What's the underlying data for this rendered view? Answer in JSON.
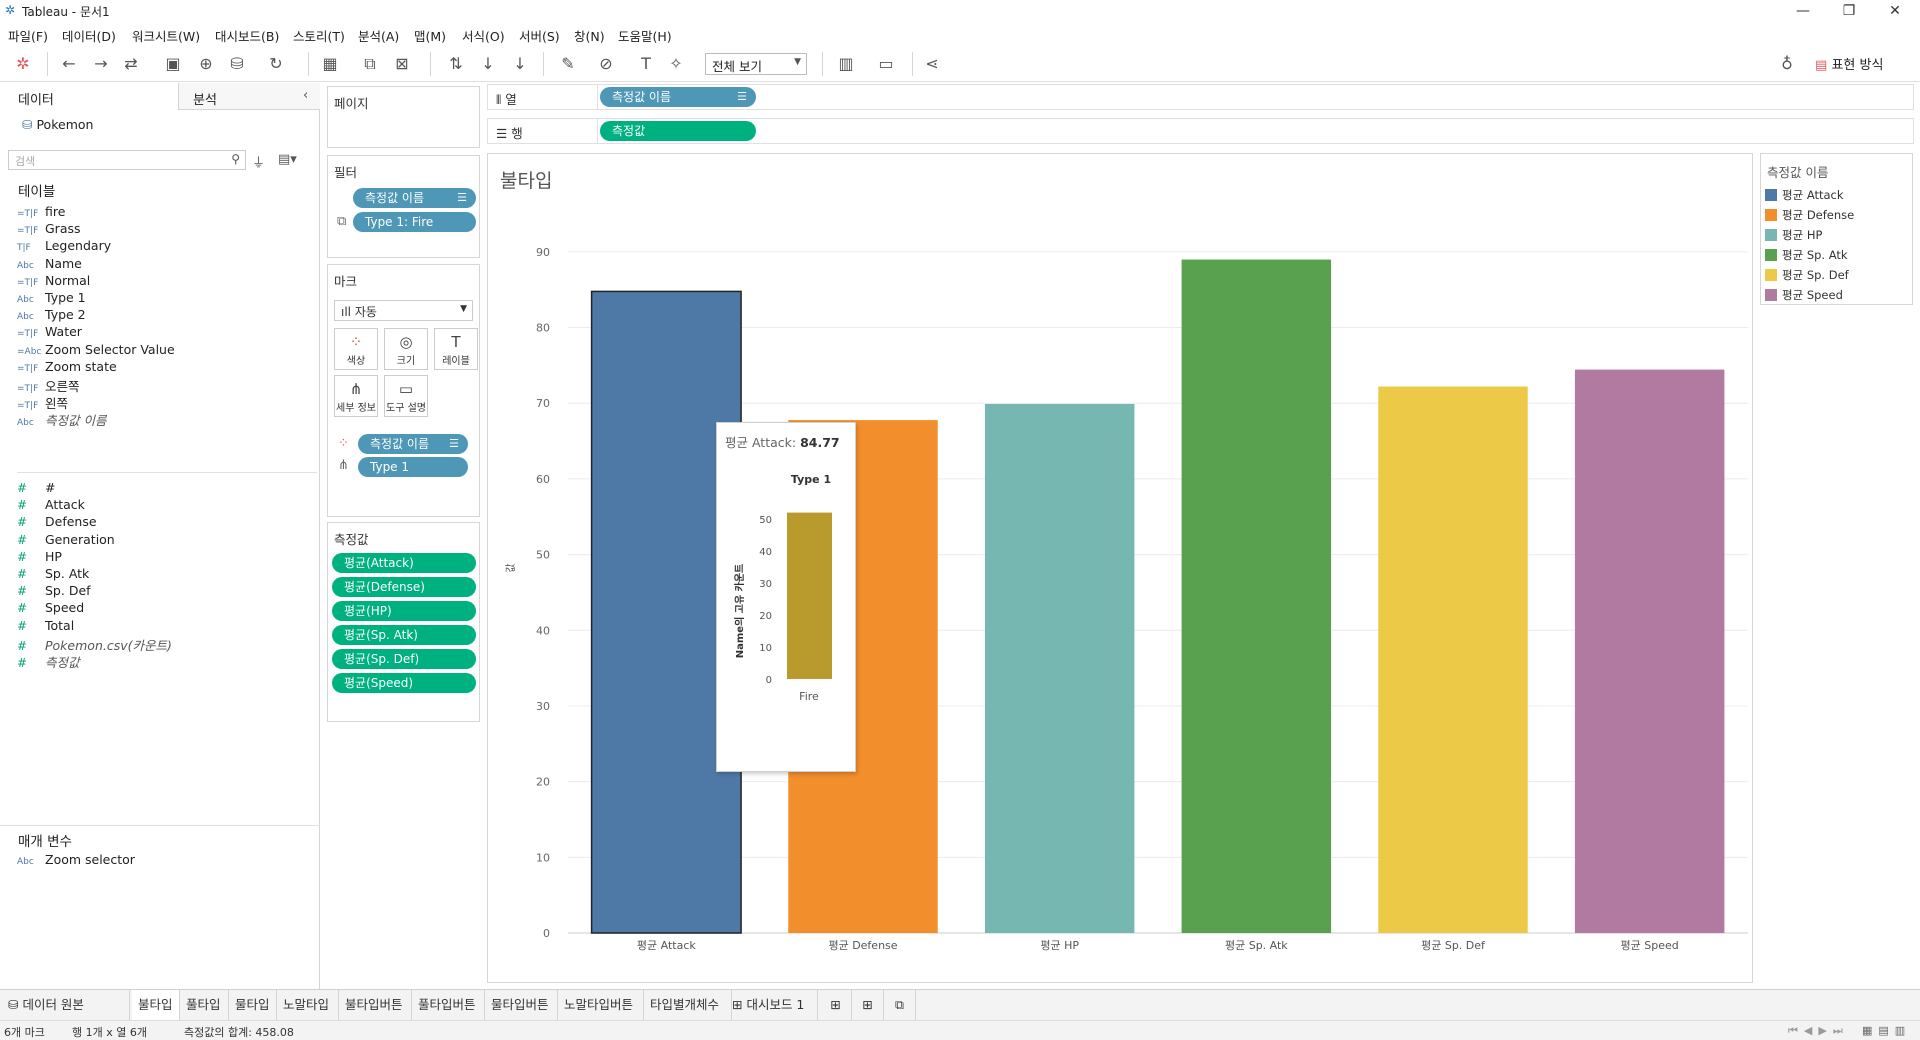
{
  "window": {
    "title": "Tableau - 문서1",
    "minimize": "—",
    "restore": "❐",
    "close": "✕"
  },
  "menu": [
    "파일(F)",
    "데이터(D)",
    "워크시트(W)",
    "대시보드(B)",
    "스토리(T)",
    "분석(A)",
    "맵(M)",
    "서식(O)",
    "서버(S)",
    "창(N)",
    "도움말(H)"
  ],
  "toolbar": {
    "view_select": "전체 보기",
    "show_me": "표현 방식"
  },
  "data_pane": {
    "tab_data": "데이터",
    "tab_analysis": "분석",
    "datasource": "Pokemon",
    "search_placeholder": "검색",
    "tables_title": "테이블",
    "dimensions": [
      {
        "icon": "=T|F",
        "label": "fire"
      },
      {
        "icon": "=T|F",
        "label": "Grass"
      },
      {
        "icon": "T|F",
        "label": "Legendary"
      },
      {
        "icon": "Abc",
        "label": "Name"
      },
      {
        "icon": "=T|F",
        "label": "Normal"
      },
      {
        "icon": "Abc",
        "label": "Type 1"
      },
      {
        "icon": "Abc",
        "label": "Type 2"
      },
      {
        "icon": "=T|F",
        "label": "Water"
      },
      {
        "icon": "=Abc",
        "label": "Zoom Selector Value"
      },
      {
        "icon": "=T|F",
        "label": "Zoom state"
      },
      {
        "icon": "=T|F",
        "label": "오른쪽"
      },
      {
        "icon": "=T|F",
        "label": "왼쪽"
      },
      {
        "icon": "Abc",
        "label": "측정값 이름"
      }
    ],
    "measures": [
      {
        "icon": "#",
        "label": "#"
      },
      {
        "icon": "#",
        "label": "Attack"
      },
      {
        "icon": "#",
        "label": "Defense"
      },
      {
        "icon": "#",
        "label": "Generation"
      },
      {
        "icon": "#",
        "label": "HP"
      },
      {
        "icon": "#",
        "label": "Sp. Atk"
      },
      {
        "icon": "#",
        "label": "Sp. Def"
      },
      {
        "icon": "#",
        "label": "Speed"
      },
      {
        "icon": "#",
        "label": "Total"
      },
      {
        "icon": "#",
        "label": "Pokemon.csv(카운트)"
      },
      {
        "icon": "#",
        "label": "측정값"
      }
    ],
    "params_title": "매개 변수",
    "params": [
      {
        "icon": "Abc",
        "label": "Zoom selector"
      }
    ]
  },
  "cards": {
    "pages_title": "페이지",
    "filters_title": "필터",
    "filters": [
      "측정값 이름",
      "Type 1: Fire"
    ],
    "marks_title": "마크",
    "mark_type": "자동",
    "mark_buttons": [
      "색상",
      "크기",
      "레이블",
      "세부 정보",
      "도구 설명"
    ],
    "mark_fields": [
      "측정값 이름",
      "Type 1"
    ],
    "measures_title": "측정값",
    "measure_values": [
      "평균(Attack)",
      "평균(Defense)",
      "평균(HP)",
      "평균(Sp. Atk)",
      "평균(Sp. Def)",
      "평균(Speed)"
    ]
  },
  "shelves": {
    "columns_label": "열",
    "columns_pill": "측정값 이름",
    "rows_label": "행",
    "rows_pill": "측정값"
  },
  "sheet": {
    "title": "불타입",
    "yaxis_label": "값"
  },
  "legend": {
    "title": "측정값 이름",
    "items": [
      {
        "label": "평균 Attack",
        "color": "#4e79a7"
      },
      {
        "label": "평균 Defense",
        "color": "#f28e2b"
      },
      {
        "label": "평균 HP",
        "color": "#76b7b2"
      },
      {
        "label": "평균 Sp. Atk",
        "color": "#59a14f"
      },
      {
        "label": "평균 Sp. Def",
        "color": "#edc948"
      },
      {
        "label": "평균 Speed",
        "color": "#b07aa1"
      }
    ]
  },
  "chart_data": [
    {
      "type": "bar",
      "title": "불타입",
      "categories": [
        "평균 Attack",
        "평균 Defense",
        "평균 HP",
        "평균 Sp. Atk",
        "평균 Sp. Def",
        "평균 Speed"
      ],
      "values": [
        84.77,
        67.77,
        69.9,
        88.98,
        72.21,
        74.44
      ],
      "colors": [
        "#4e79a7",
        "#f28e2b",
        "#76b7b2",
        "#59a14f",
        "#edc948",
        "#b07aa1"
      ],
      "ylabel": "값",
      "ylim": [
        0,
        95
      ],
      "yticks": [
        0,
        10,
        20,
        30,
        40,
        50,
        60,
        70,
        80,
        90
      ],
      "grid": true,
      "selected": "평균 Attack"
    },
    {
      "type": "bar",
      "title": "Type 1",
      "categories": [
        "Fire"
      ],
      "values": [
        52
      ],
      "colors": [
        "#b89b2c"
      ],
      "ylabel": "Name의 고유 카운트",
      "ylim": [
        0,
        55
      ],
      "yticks": [
        0,
        10,
        20,
        30,
        40,
        50
      ]
    }
  ],
  "tooltip": {
    "label": "평균 Attack:",
    "value": "84.77"
  },
  "tabs": {
    "datasource": "데이터 원본",
    "sheets": [
      "불타입",
      "풀타입",
      "물타입",
      "노말타입",
      "불타입버튼",
      "풀타입버튼",
      "물타입버튼",
      "노말타입버튼",
      "타입별개체수"
    ],
    "dashboard": "대시보드 1",
    "active_index": 0
  },
  "status": {
    "marks": "6개 마크",
    "rowcol": "행 1개 x 열 6개",
    "sum": "측정값의 합계: 458.08"
  }
}
